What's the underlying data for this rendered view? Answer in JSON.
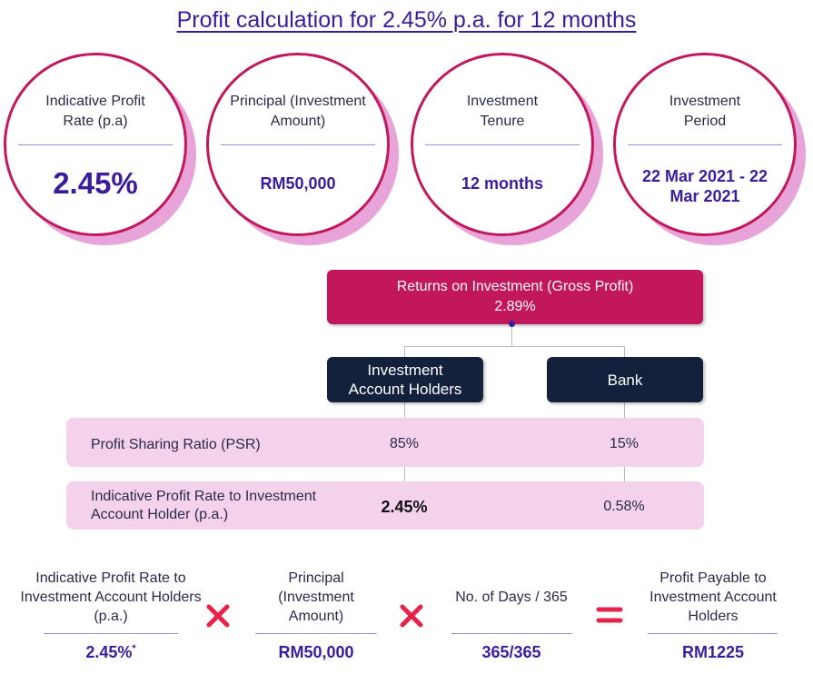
{
  "title": "Profit calculation for 2.45% p.a. for 12 months",
  "circles": [
    {
      "label": "Indicative Profit Rate (p.a)",
      "value": "2.45%"
    },
    {
      "label": "Principal (Investment Amount)",
      "value": "RM50,000"
    },
    {
      "label": "Investment Tenure",
      "value": "12 months"
    },
    {
      "label": "Investment Period",
      "value": "22 Mar 2021 - 22 Mar 2021"
    }
  ],
  "roi": {
    "label": "Returns on Investment (Gross Profit)",
    "value": "2.89%"
  },
  "parties": {
    "holders": "Investment Account Holders",
    "bank": "Bank"
  },
  "psr": {
    "label": "Profit Sharing Ratio (PSR)",
    "holders": "85%",
    "bank": "15%"
  },
  "rate_row": {
    "label": "Indicative Profit Rate to Investment Account Holder (p.a.)",
    "holders": "2.45%",
    "bank": "0.58%"
  },
  "formula": [
    {
      "label": "Indicative Profit Rate to Investment Account Holders (p.a.)",
      "value": "2.45%",
      "note": "*"
    },
    {
      "label": "Principal (Investment Amount)",
      "value": "RM50,000"
    },
    {
      "label": "No. of Days / 365",
      "value": "365/365"
    },
    {
      "label": "Profit Payable to Investment Account Holders",
      "value": "RM1225"
    }
  ],
  "colors": {
    "accent": "#c2185b",
    "brand": "#3b1c9c",
    "navy": "#14213d",
    "pink_row": "#f5d2ec",
    "circle_shadow": "#e8a4d8"
  }
}
